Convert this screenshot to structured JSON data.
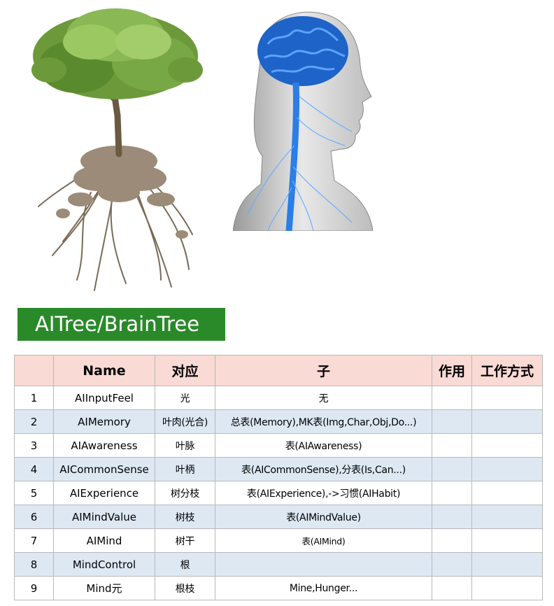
{
  "banner": {
    "title": "AITree/BrainTree"
  },
  "images": [
    {
      "icon": "tree-with-roots-photo"
    },
    {
      "icon": "human-head-brain-anatomy-illustration"
    }
  ],
  "table": {
    "headers": {
      "index": "",
      "name": "Name",
      "relation": "对应",
      "child": "子",
      "usage": "作用",
      "method": "工作方式"
    },
    "rows": [
      {
        "no": "1",
        "name": "AIInputFeel",
        "relation": "光",
        "child": "无",
        "usage": "",
        "method": ""
      },
      {
        "no": "2",
        "name": "AIMemory",
        "relation": "叶肉(光合)",
        "child": "总表(Memory),MK表(Img,Char,Obj,Do...)",
        "usage": "",
        "method": ""
      },
      {
        "no": "3",
        "name": "AIAwareness",
        "relation": "叶脉",
        "child": "表(AIAwareness)",
        "usage": "",
        "method": ""
      },
      {
        "no": "4",
        "name": "AICommonSense",
        "relation": "叶柄",
        "child": "表(AICommonSense),分表(Is,Can...)",
        "usage": "",
        "method": ""
      },
      {
        "no": "5",
        "name": "AIExperience",
        "relation": "树分枝",
        "child": "表(AIExperience),->习惯(AIHabit)",
        "usage": "",
        "method": ""
      },
      {
        "no": "6",
        "name": "AIMindValue",
        "relation": "树枝",
        "child": "表(AIMindValue)",
        "usage": "",
        "method": ""
      },
      {
        "no": "7",
        "name": "AIMind",
        "relation": "树干",
        "child": "表(AIMind)",
        "usage": "",
        "method": ""
      },
      {
        "no": "8",
        "name": "MindControl",
        "relation": "根",
        "child": "",
        "usage": "",
        "method": ""
      },
      {
        "no": "9",
        "name": "Mind元",
        "relation": "根枝",
        "child": "Mine,Hunger...",
        "usage": "",
        "method": ""
      }
    ]
  }
}
